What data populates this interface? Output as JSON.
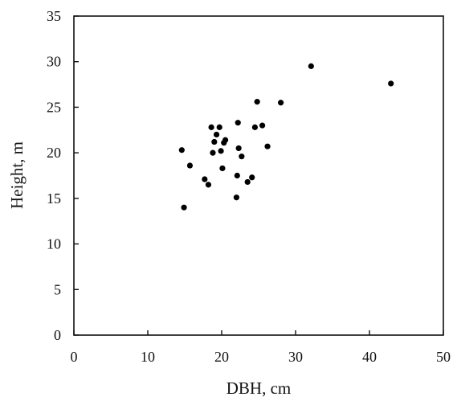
{
  "chart_data": {
    "type": "scatter",
    "title": "",
    "xlabel": "DBH, cm",
    "ylabel": "Height, m",
    "xlim": [
      0,
      50
    ],
    "ylim": [
      0,
      35
    ],
    "xticks": [
      0,
      10,
      20,
      30,
      40,
      50
    ],
    "yticks": [
      0,
      5,
      10,
      15,
      20,
      25,
      30,
      35
    ],
    "grid": false,
    "legend": "none",
    "marker_color": "#000000",
    "series": [
      {
        "points": [
          [
            14.6,
            20.3
          ],
          [
            14.9,
            14.0
          ],
          [
            15.7,
            18.6
          ],
          [
            17.7,
            17.1
          ],
          [
            18.2,
            16.5
          ],
          [
            18.6,
            22.8
          ],
          [
            18.8,
            20.0
          ],
          [
            19.0,
            21.2
          ],
          [
            19.3,
            22.0
          ],
          [
            19.7,
            22.8
          ],
          [
            19.9,
            20.2
          ],
          [
            20.1,
            18.3
          ],
          [
            20.3,
            21.1
          ],
          [
            20.5,
            21.4
          ],
          [
            22.0,
            15.1
          ],
          [
            22.1,
            17.5
          ],
          [
            22.2,
            23.3
          ],
          [
            22.3,
            20.5
          ],
          [
            22.7,
            19.6
          ],
          [
            23.5,
            16.8
          ],
          [
            24.1,
            17.3
          ],
          [
            24.5,
            22.8
          ],
          [
            24.8,
            25.6
          ],
          [
            25.5,
            23.0
          ],
          [
            26.2,
            20.7
          ],
          [
            28.0,
            25.5
          ],
          [
            32.1,
            29.5
          ],
          [
            42.9,
            27.6
          ]
        ]
      }
    ]
  }
}
